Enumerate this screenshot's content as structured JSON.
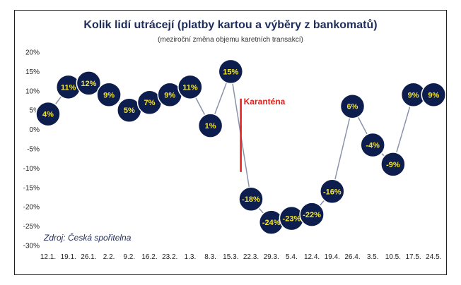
{
  "chart_data": {
    "type": "line",
    "title": "Kolik lidí utrácejí (platby kartou a výběry z bankomatů)",
    "subtitle": "(meziroční změna objemu karetních transakcí)",
    "source": "Zdroj: Česká spořitelna",
    "categories": [
      "12.1.",
      "19.1.",
      "26.1.",
      "2.2.",
      "9.2.",
      "16.2.",
      "23.2.",
      "1.3.",
      "8.3.",
      "15.3.",
      "22.3.",
      "29.3.",
      "5.4.",
      "12.4.",
      "19.4.",
      "26.4.",
      "3.5.",
      "10.5.",
      "17.5.",
      "24.5."
    ],
    "values": [
      4,
      11,
      12,
      9,
      5,
      7,
      9,
      11,
      1,
      15,
      -18,
      -24,
      -23,
      -22,
      -16,
      6,
      -4,
      -9,
      9,
      9
    ],
    "value_labels": [
      "4%",
      "11%",
      "12%",
      "9%",
      "5%",
      "7%",
      "9%",
      "11%",
      "1%",
      "15%",
      "-18%",
      "-24%",
      "-23%",
      "-22%",
      "-16%",
      "6%",
      "-4%",
      "-9%",
      "9%",
      "9%"
    ],
    "y_ticks": [
      "20%",
      "15%",
      "10%",
      "5%",
      "0%",
      "-5%",
      "-10%",
      "-15%",
      "-20%",
      "-25%",
      "-30%"
    ],
    "ylim": [
      -30,
      20
    ],
    "annotation": {
      "label": "Karanténa",
      "x_between": [
        "15.3.",
        "22.3."
      ],
      "y_range": [
        -11,
        8
      ],
      "color": "#e0201c"
    },
    "colors": {
      "marker": "#0d1e4e",
      "marker_text": "#f5e425",
      "line": "#8a93ab",
      "title": "#1f2d5a"
    }
  }
}
